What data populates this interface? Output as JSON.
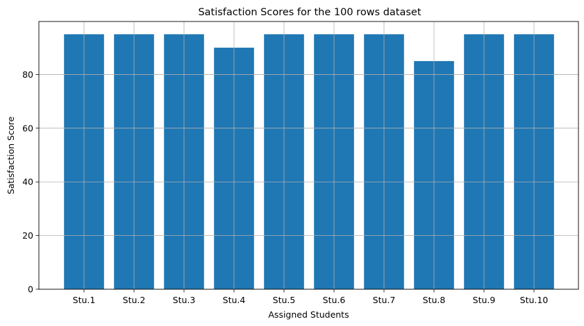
{
  "chart_data": {
    "type": "bar",
    "title": "Satisfaction Scores for the 100 rows dataset",
    "xlabel": "Assigned Students",
    "ylabel": "Satisfaction Score",
    "categories": [
      "Stu.1",
      "Stu.2",
      "Stu.3",
      "Stu.4",
      "Stu.5",
      "Stu.6",
      "Stu.7",
      "Stu.8",
      "Stu.9",
      "Stu.10"
    ],
    "values": [
      95,
      95,
      95,
      90,
      95,
      95,
      95,
      85,
      95,
      95
    ],
    "ylim": [
      0,
      99.75
    ],
    "yticks": [
      0,
      20,
      40,
      60,
      80
    ],
    "grid": true,
    "colors": {
      "bar": "#1f77b4",
      "grid": "#b0b0b0",
      "axis": "#000000"
    }
  }
}
